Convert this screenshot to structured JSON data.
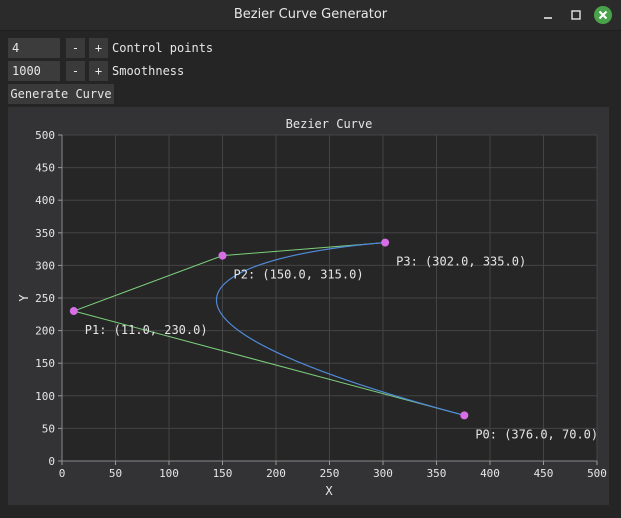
{
  "window": {
    "title": "Bezier Curve Generator"
  },
  "controls": {
    "control_points": {
      "value": "4",
      "minus": "-",
      "plus": "+",
      "label": "Control points"
    },
    "smoothness": {
      "value": "1000",
      "minus": "-",
      "plus": "+",
      "label": "Smoothness"
    },
    "generate_label": "Generate Curve"
  },
  "colors": {
    "curve": "#4f8ad8",
    "polygon": "#7ccf7c",
    "points": "#d86ee6",
    "grid": "#444446"
  },
  "icons": {
    "minimize": "minimize-icon",
    "maximize": "maximize-icon",
    "close": "close-icon"
  },
  "chart_data": {
    "type": "line",
    "title": "Bezier Curve",
    "xlabel": "X",
    "ylabel": "Y",
    "xlim": [
      0,
      500
    ],
    "ylim": [
      0,
      500
    ],
    "xticks": [
      0,
      50,
      100,
      150,
      200,
      250,
      300,
      350,
      400,
      450,
      500
    ],
    "yticks": [
      0,
      50,
      100,
      150,
      200,
      250,
      300,
      350,
      400,
      450,
      500
    ],
    "grid": true,
    "control_points": [
      {
        "label": "P0: (376.0, 70.0)",
        "x": 376,
        "y": 70
      },
      {
        "label": "P1: (11.0, 230.0)",
        "x": 11,
        "y": 230
      },
      {
        "label": "P2: (150.0, 315.0)",
        "x": 150,
        "y": 315
      },
      {
        "label": "P3: (302.0, 335.0)",
        "x": 302,
        "y": 335
      }
    ]
  }
}
